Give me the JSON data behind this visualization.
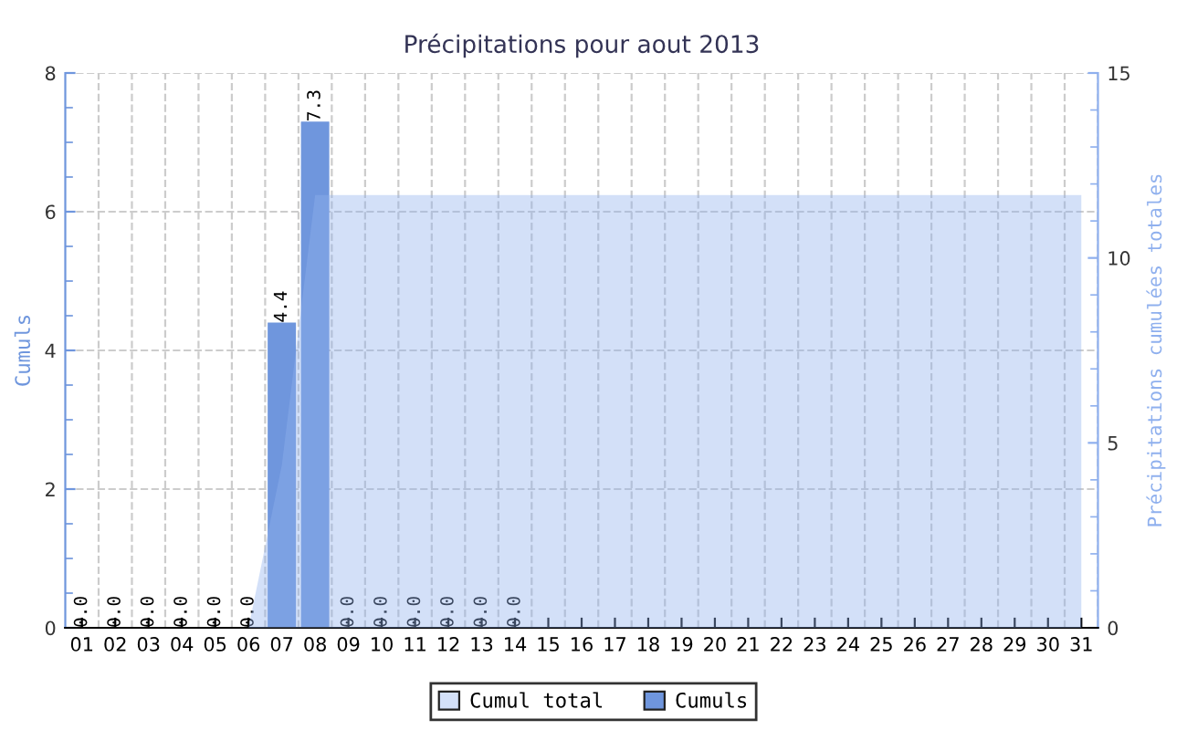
{
  "chart_data": {
    "type": "bar",
    "title": "Précipitations pour aout 2013",
    "ylabel": "Cumuls",
    "y2label": "Précipitations cumulées totales",
    "categories": [
      "01",
      "02",
      "03",
      "04",
      "05",
      "06",
      "07",
      "08",
      "09",
      "10",
      "11",
      "12",
      "13",
      "14",
      "15",
      "16",
      "17",
      "18",
      "19",
      "20",
      "21",
      "22",
      "23",
      "24",
      "25",
      "26",
      "27",
      "28",
      "29",
      "30",
      "31"
    ],
    "series": [
      {
        "name": "Cumul total",
        "type": "area",
        "axis": "y2",
        "color": "#91b2ee",
        "values": [
          0,
          0,
          0,
          0,
          0,
          0,
          4.4,
          11.7,
          11.7,
          11.7,
          11.7,
          11.7,
          11.7,
          11.7,
          11.7,
          11.7,
          11.7,
          11.7,
          11.7,
          11.7,
          11.7,
          11.7,
          11.7,
          11.7,
          11.7,
          11.7,
          11.7,
          11.7,
          11.7,
          11.7,
          11.7
        ]
      },
      {
        "name": "Cumuls",
        "type": "bar",
        "color": "#6f96dd",
        "values": [
          0,
          0,
          0,
          0,
          0,
          0,
          4.4,
          7.3,
          0,
          0,
          0,
          0,
          0,
          0,
          null,
          null,
          null,
          null,
          null,
          null,
          null,
          null,
          null,
          null,
          null,
          null,
          null,
          null,
          null,
          null,
          null
        ],
        "value_labels": [
          "0.0",
          "0.0",
          "0.0",
          "0.0",
          "0.0",
          "0.0",
          "4.4",
          "7.3",
          "0.0",
          "0.0",
          "0.0",
          "0.0",
          "0.0",
          "0.0",
          null,
          null,
          null,
          null,
          null,
          null,
          null,
          null,
          null,
          null,
          null,
          null,
          null,
          null,
          null,
          null,
          null
        ]
      }
    ],
    "ylim": [
      0,
      8
    ],
    "yticks": [
      0,
      2,
      4,
      6,
      8
    ],
    "y2lim": [
      0,
      15
    ],
    "y2ticks": [
      0,
      5,
      10,
      15
    ],
    "grid": true,
    "legend": "bottom"
  }
}
